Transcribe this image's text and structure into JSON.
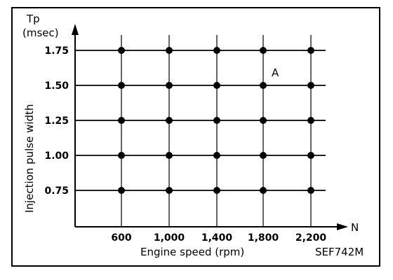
{
  "chart_data": {
    "type": "scatter",
    "xlabel": "Engine speed (rpm)",
    "ylabel": "Injection pulse width",
    "x_axis_symbol": "N",
    "y_axis_symbol": "Tp",
    "y_axis_unit": "(msec)",
    "x_ticks": [
      "600",
      "1,000",
      "1,400",
      "1,800",
      "2,200"
    ],
    "y_ticks": [
      "1.75",
      "1.50",
      "1.25",
      "1.00",
      "0.75"
    ],
    "x_values": [
      600,
      1000,
      1400,
      1800,
      2200
    ],
    "y_values": [
      1.75,
      1.5,
      1.25,
      1.0,
      0.75
    ],
    "grid": true,
    "annotation": {
      "text": "A",
      "x": 1800,
      "y": 1.5
    },
    "figure_code": "SEF742M"
  }
}
